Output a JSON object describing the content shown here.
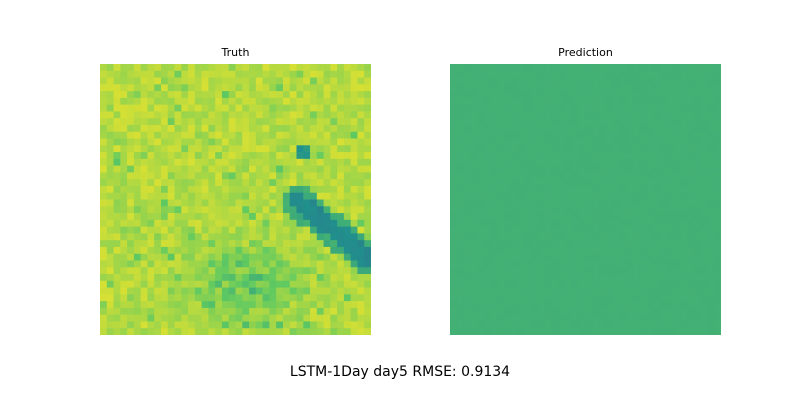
{
  "figure": {
    "suptitle": "LSTM-1Day day5 RMSE: 0.9134"
  },
  "chart_data": [
    {
      "type": "heatmap",
      "title": "Truth",
      "axis": "off",
      "grid": false,
      "colormap": "viridis",
      "vmin": 0.0,
      "vmax": 1.0,
      "resolution": [
        40,
        40
      ],
      "dominant_value": 0.94,
      "features": "mostly yellow-green field; dark teal diagonal channel running from upper-middle-right to lower right edge; greener mottled patches toward the lower middle"
    },
    {
      "type": "heatmap",
      "title": "Prediction",
      "axis": "off",
      "grid": false,
      "colormap": "viridis",
      "vmin": 0.0,
      "vmax": 1.0,
      "resolution": [
        40,
        40
      ],
      "dominant_value": 0.64,
      "features": "nearly uniform green field"
    }
  ]
}
